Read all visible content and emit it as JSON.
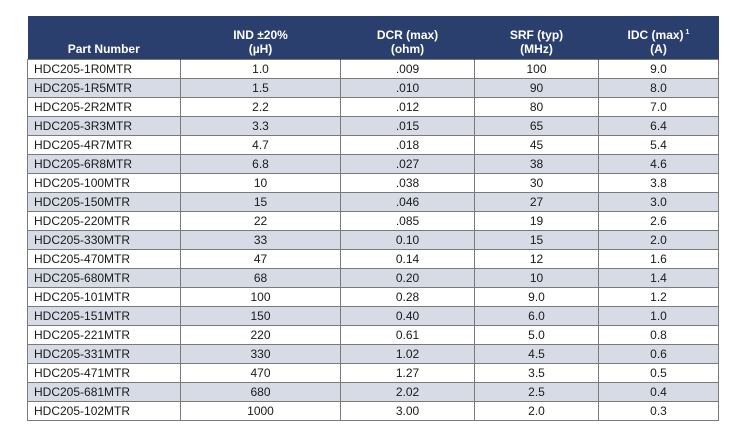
{
  "table": {
    "headers": [
      {
        "line1": "",
        "line2": "Part Number"
      },
      {
        "line1": "IND ±20%",
        "line2": "(µH)"
      },
      {
        "line1": "DCR (max)",
        "line2": "(ohm)"
      },
      {
        "line1": "SRF (typ)",
        "line2": "(MHz)"
      },
      {
        "line1": "IDC (max)",
        "footnote": "1",
        "line2": "(A)"
      }
    ],
    "rows": [
      [
        "HDC205-1R0MTR",
        "1.0",
        ".009",
        "100",
        "9.0"
      ],
      [
        "HDC205-1R5MTR",
        "1.5",
        ".010",
        "90",
        "8.0"
      ],
      [
        "HDC205-2R2MTR",
        "2.2",
        ".012",
        "80",
        "7.0"
      ],
      [
        "HDC205-3R3MTR",
        "3.3",
        ".015",
        "65",
        "6.4"
      ],
      [
        "HDC205-4R7MTR",
        "4.7",
        ".018",
        "45",
        "5.4"
      ],
      [
        "HDC205-6R8MTR",
        "6.8",
        ".027",
        "38",
        "4.6"
      ],
      [
        "HDC205-100MTR",
        "10",
        ".038",
        "30",
        "3.8"
      ],
      [
        "HDC205-150MTR",
        "15",
        ".046",
        "27",
        "3.0"
      ],
      [
        "HDC205-220MTR",
        "22",
        ".085",
        "19",
        "2.6"
      ],
      [
        "HDC205-330MTR",
        "33",
        "0.10",
        "15",
        "2.0"
      ],
      [
        "HDC205-470MTR",
        "47",
        "0.14",
        "12",
        "1.6"
      ],
      [
        "HDC205-680MTR",
        "68",
        "0.20",
        "10",
        "1.4"
      ],
      [
        "HDC205-101MTR",
        "100",
        "0.28",
        "9.0",
        "1.2"
      ],
      [
        "HDC205-151MTR",
        "150",
        "0.40",
        "6.0",
        "1.0"
      ],
      [
        "HDC205-221MTR",
        "220",
        "0.61",
        "5.0",
        "0.8"
      ],
      [
        "HDC205-331MTR",
        "330",
        "1.02",
        "4.5",
        "0.6"
      ],
      [
        "HDC205-471MTR",
        "470",
        "1.27",
        "3.5",
        "0.5"
      ],
      [
        "HDC205-681MTR",
        "680",
        "2.02",
        "2.5",
        "0.4"
      ],
      [
        "HDC205-102MTR",
        "1000",
        "3.00",
        "2.0",
        "0.3"
      ]
    ]
  },
  "colors": {
    "header_bg": "#2b3f6e",
    "header_text": "#ffffff",
    "stripe_bg": "#d6dbe6",
    "border": "#7a7a7a"
  }
}
